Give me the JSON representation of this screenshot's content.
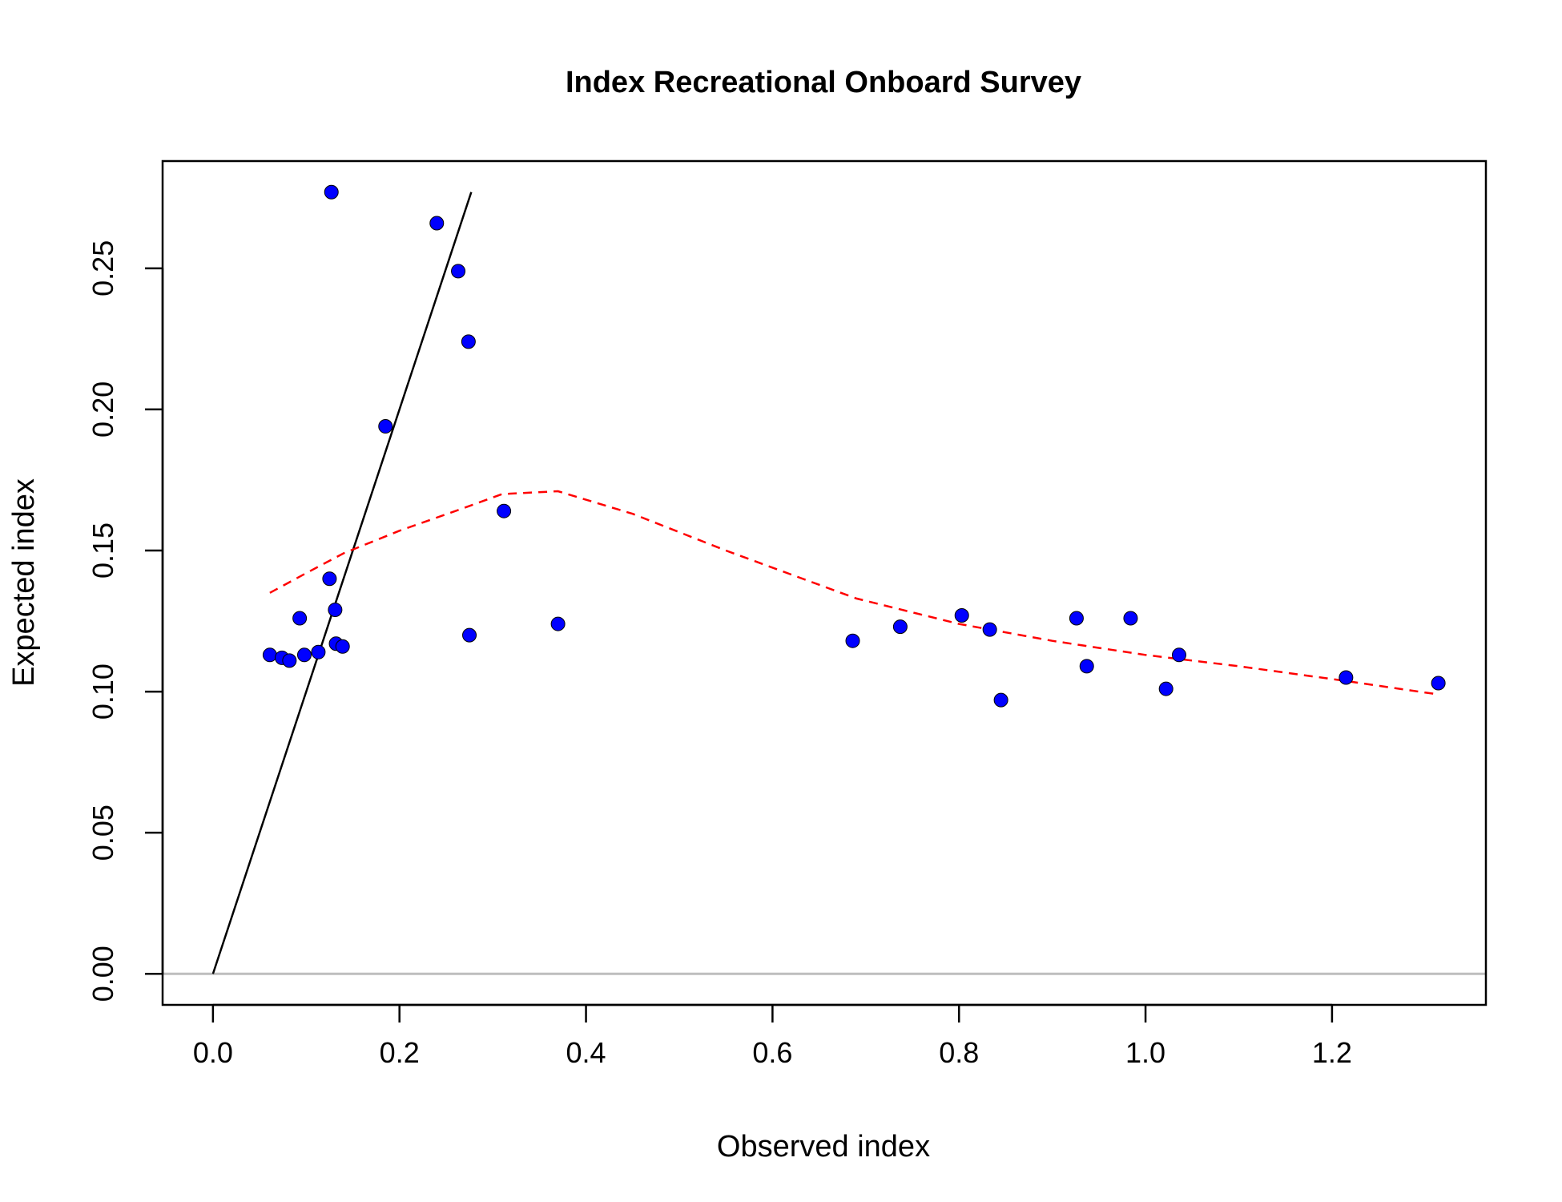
{
  "chart_data": {
    "type": "scatter",
    "title": "Index Recreational Onboard Survey",
    "xlabel": "Observed index",
    "ylabel": "Expected index",
    "xlim": [
      -0.054,
      1.365
    ],
    "ylim": [
      -0.011,
      0.288
    ],
    "xticks": [
      "0.0",
      "0.2",
      "0.4",
      "0.6",
      "0.8",
      "1.0",
      "1.2"
    ],
    "yticks": [
      "0.00",
      "0.05",
      "0.10",
      "0.15",
      "0.20",
      "0.25"
    ],
    "grid": false,
    "legend": "none",
    "colors": {
      "points": "#0000ff",
      "point_outline": "#000000",
      "identity_line": "#000000",
      "smoother": "#ff0000",
      "zero_line": "#bebebe",
      "frame": "#000000"
    },
    "points": [
      {
        "x": 0.061,
        "y": 0.113
      },
      {
        "x": 0.074,
        "y": 0.112
      },
      {
        "x": 0.082,
        "y": 0.111
      },
      {
        "x": 0.093,
        "y": 0.126
      },
      {
        "x": 0.098,
        "y": 0.113
      },
      {
        "x": 0.113,
        "y": 0.114
      },
      {
        "x": 0.125,
        "y": 0.14
      },
      {
        "x": 0.127,
        "y": 0.277
      },
      {
        "x": 0.131,
        "y": 0.129
      },
      {
        "x": 0.132,
        "y": 0.117
      },
      {
        "x": 0.139,
        "y": 0.116
      },
      {
        "x": 0.185,
        "y": 0.194
      },
      {
        "x": 0.24,
        "y": 0.266
      },
      {
        "x": 0.263,
        "y": 0.249
      },
      {
        "x": 0.274,
        "y": 0.224
      },
      {
        "x": 0.275,
        "y": 0.12
      },
      {
        "x": 0.312,
        "y": 0.164
      },
      {
        "x": 0.37,
        "y": 0.124
      },
      {
        "x": 0.686,
        "y": 0.118
      },
      {
        "x": 0.737,
        "y": 0.123
      },
      {
        "x": 0.803,
        "y": 0.127
      },
      {
        "x": 0.833,
        "y": 0.122
      },
      {
        "x": 0.845,
        "y": 0.097
      },
      {
        "x": 0.926,
        "y": 0.126
      },
      {
        "x": 0.937,
        "y": 0.109
      },
      {
        "x": 0.984,
        "y": 0.126
      },
      {
        "x": 1.022,
        "y": 0.101
      },
      {
        "x": 1.036,
        "y": 0.113
      },
      {
        "x": 1.215,
        "y": 0.105
      },
      {
        "x": 1.314,
        "y": 0.103
      }
    ],
    "identity_line": {
      "x": [
        0.0,
        0.277
      ],
      "y": [
        0.0,
        0.277
      ]
    },
    "smoother": {
      "x": [
        0.061,
        0.1,
        0.14,
        0.2,
        0.26,
        0.31,
        0.37,
        0.45,
        0.55,
        0.69,
        0.8,
        0.9,
        1.0,
        1.1,
        1.21,
        1.314
      ],
      "y": [
        0.135,
        0.142,
        0.149,
        0.157,
        0.164,
        0.17,
        0.171,
        0.163,
        0.15,
        0.133,
        0.124,
        0.118,
        0.113,
        0.109,
        0.104,
        0.099
      ]
    },
    "zero_line": {
      "y": 0
    }
  }
}
